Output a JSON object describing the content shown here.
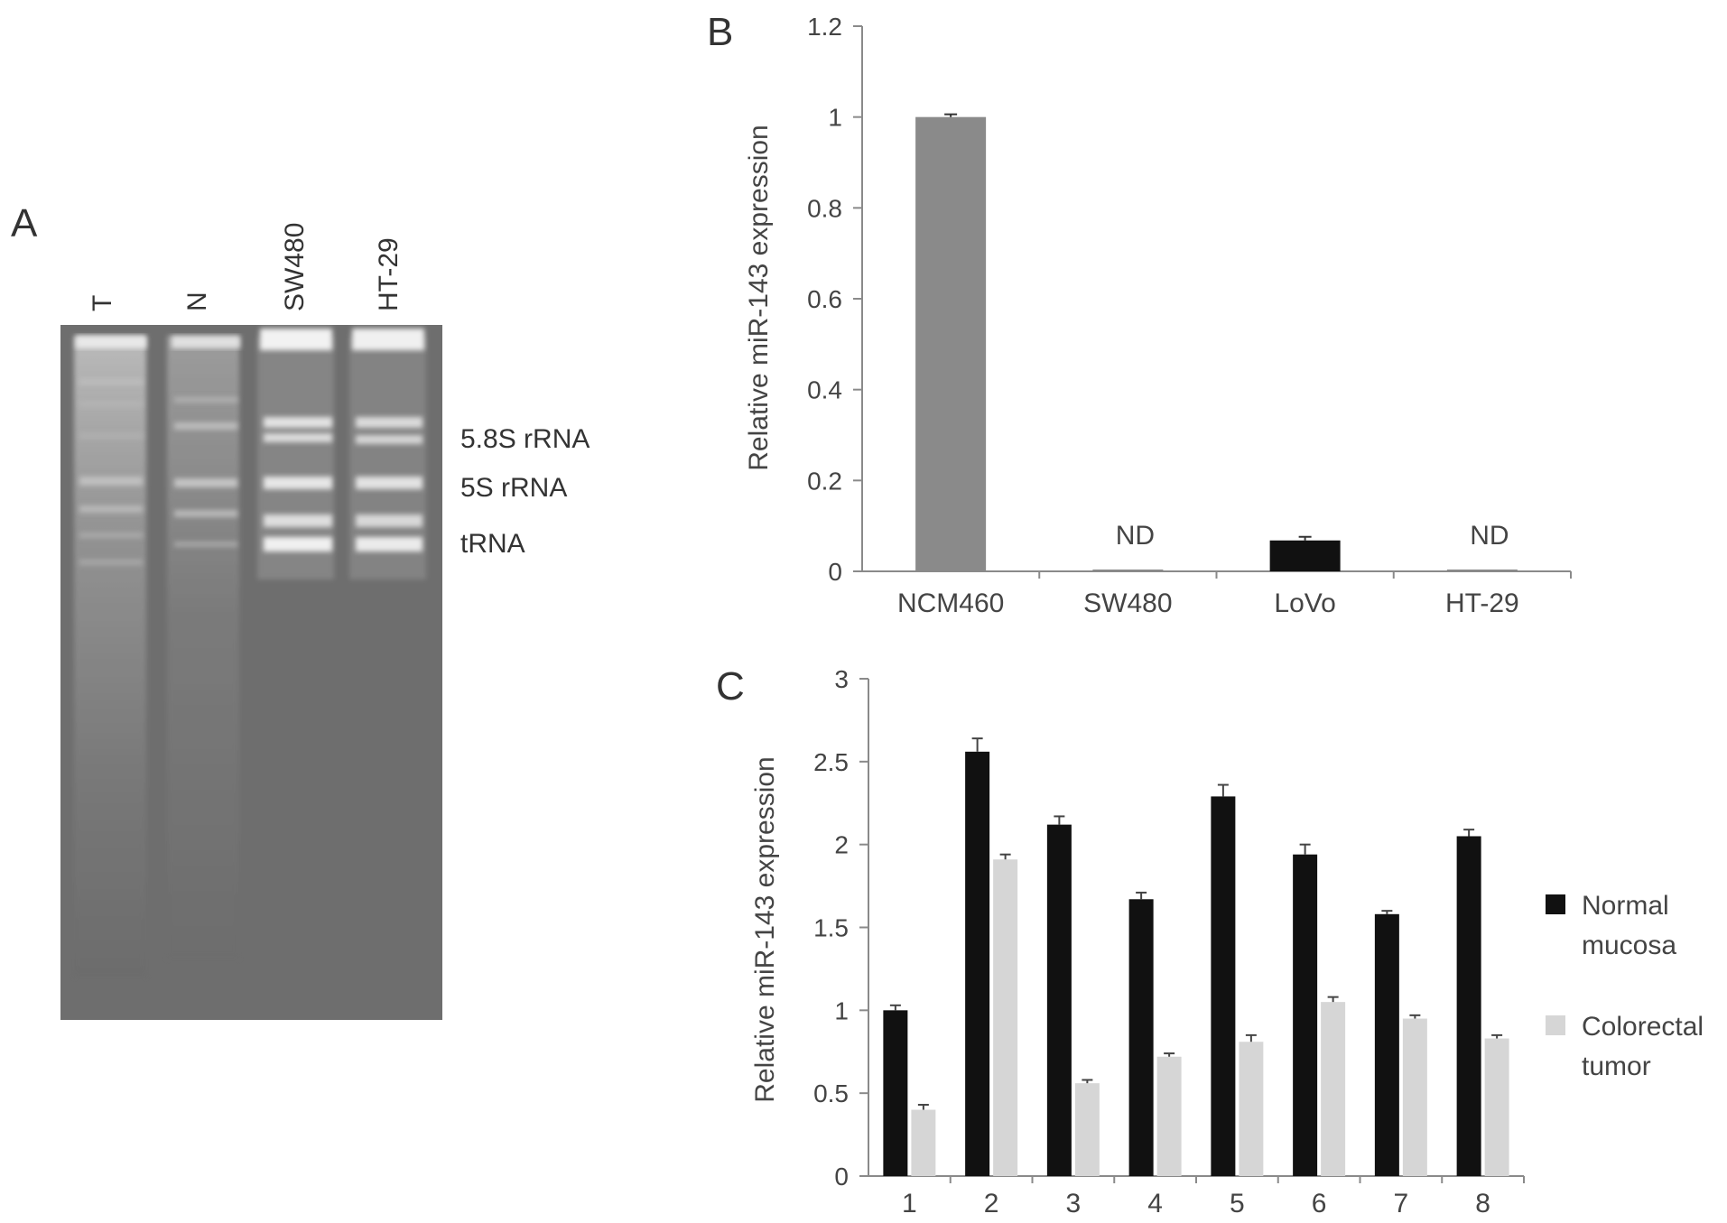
{
  "panels": {
    "a": "A",
    "b": "B",
    "c": "C"
  },
  "gel": {
    "lanes": [
      "T",
      "N",
      "SW480",
      "HT-29"
    ],
    "band_labels": [
      "5.8S rRNA",
      "5S rRNA",
      "tRNA"
    ]
  },
  "chart_data": [
    {
      "type": "bar",
      "panel": "B",
      "categories": [
        "NCM460",
        "SW480",
        "LoVo",
        "HT-29"
      ],
      "values": [
        1.0,
        0.004,
        0.068,
        0.004
      ],
      "errors": [
        0.006,
        0,
        0.008,
        0
      ],
      "bar_colors": [
        "#8a8a8a",
        "#8a8a8a",
        "#111111",
        "#8a8a8a"
      ],
      "annotations": [
        "",
        "ND",
        "",
        "ND"
      ],
      "ylabel": "Relative miR-143 expression",
      "xlabel": "",
      "ylim": [
        0,
        1.2
      ],
      "yticks": [
        "0",
        "0.2",
        "0.4",
        "0.6",
        "0.8",
        "1",
        "1.2"
      ],
      "grid": false
    },
    {
      "type": "bar",
      "panel": "C",
      "categories": [
        "1",
        "2",
        "3",
        "4",
        "5",
        "6",
        "7",
        "8"
      ],
      "series": [
        {
          "name": "Normal mucosa",
          "name_lines": [
            "Normal",
            "mucosa"
          ],
          "color": "#111111",
          "values": [
            1.0,
            2.56,
            2.12,
            1.67,
            2.29,
            1.94,
            1.58,
            2.05
          ],
          "errors": [
            0.03,
            0.08,
            0.05,
            0.04,
            0.07,
            0.06,
            0.02,
            0.04
          ]
        },
        {
          "name": "Colorectal tumor",
          "name_lines": [
            "Colorectal",
            "tumor"
          ],
          "color": "#d6d6d6",
          "values": [
            0.4,
            1.91,
            0.56,
            0.72,
            0.81,
            1.05,
            0.95,
            0.83
          ],
          "errors": [
            0.03,
            0.03,
            0.02,
            0.02,
            0.04,
            0.03,
            0.02,
            0.02
          ]
        }
      ],
      "ylabel": "Relative miR-143 expression",
      "xlabel": "",
      "ylim": [
        0,
        3
      ],
      "yticks": [
        "0",
        "0.5",
        "1",
        "1.5",
        "2",
        "2.5",
        "3"
      ],
      "legend": "right",
      "grid": false
    }
  ]
}
